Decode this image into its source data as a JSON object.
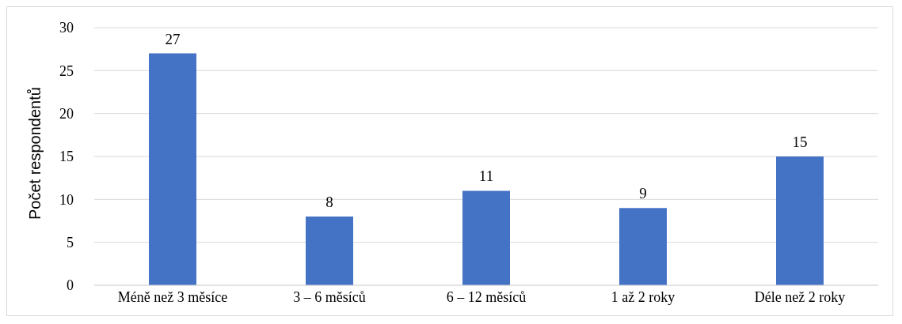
{
  "chart_data": {
    "type": "bar",
    "ylabel": "Počet respondentů",
    "categories": [
      "Méně než 3 měsíce",
      "3 – 6 měsíců",
      "6 – 12 měsíců",
      "1 až 2 roky",
      "Déle než 2 roky"
    ],
    "values": [
      27,
      8,
      11,
      9,
      15
    ],
    "color": "#4472c4",
    "ylim": [
      0,
      30
    ],
    "yticks": [
      0,
      5,
      10,
      15,
      20,
      25,
      30
    ],
    "grid": "y",
    "data_labels": true,
    "legend": false
  }
}
